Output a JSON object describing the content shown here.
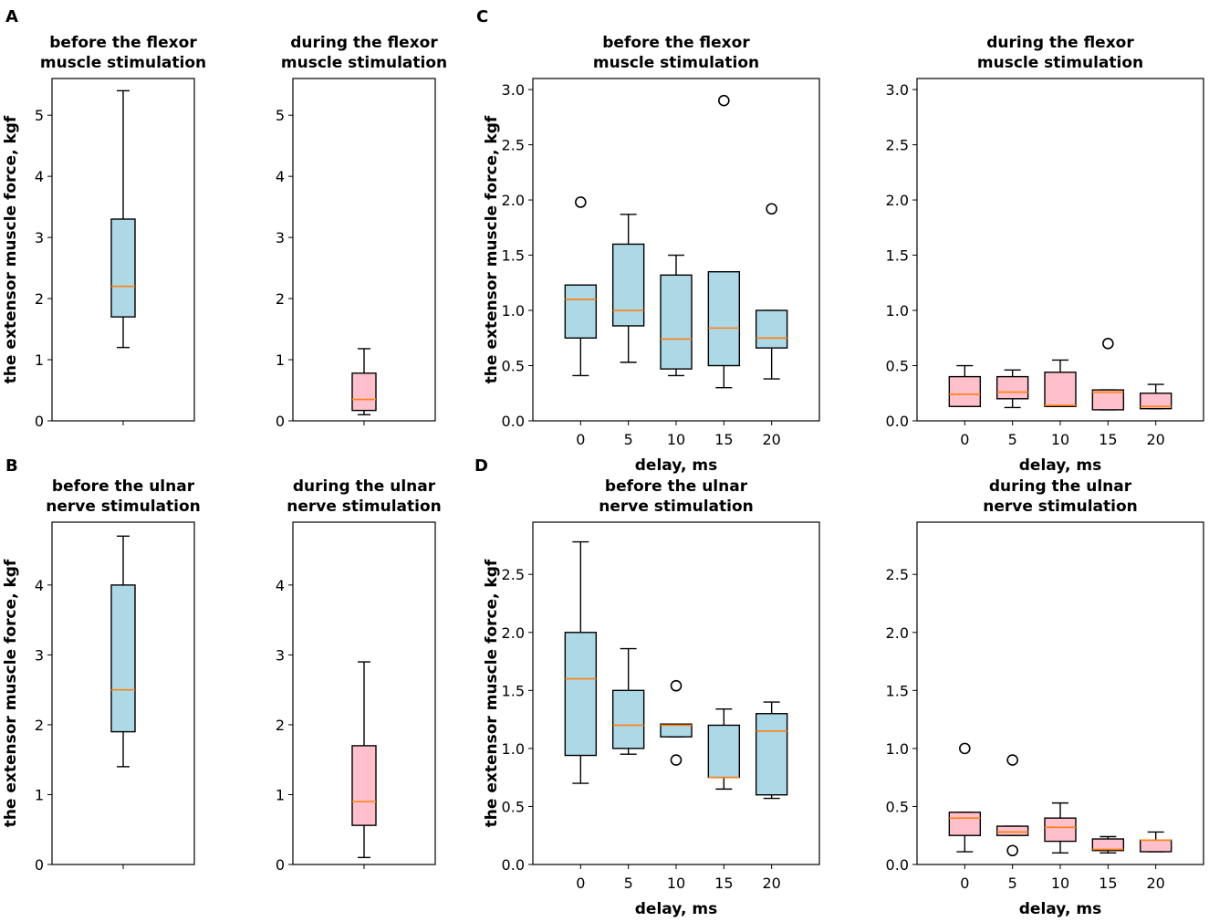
{
  "colors": {
    "before": "#add8e6",
    "during": "#ffc0cb",
    "median": "#ff7f0e",
    "line": "#000000"
  },
  "panel_labels": [
    "A",
    "B",
    "C",
    "D"
  ],
  "chart_data": [
    {
      "id": "A1",
      "type": "box",
      "title": [
        "before the flexor",
        "muscle stimulation"
      ],
      "ylabel": "the extensor muscle force, kgf",
      "xlabel": "",
      "ylim": [
        0,
        5.6
      ],
      "yticks": [
        0,
        1,
        2,
        3,
        4,
        5
      ],
      "categories": [],
      "fill": "before",
      "boxes": [
        {
          "whislo": 1.2,
          "q1": 1.7,
          "med": 2.2,
          "q3": 3.3,
          "whishi": 5.4,
          "fliers": []
        }
      ]
    },
    {
      "id": "A2",
      "type": "box",
      "title": [
        "during the flexor",
        "muscle stimulation"
      ],
      "ylabel": "",
      "xlabel": "",
      "ylim": [
        0,
        5.6
      ],
      "yticks": [
        0,
        1,
        2,
        3,
        4,
        5
      ],
      "categories": [],
      "fill": "during",
      "boxes": [
        {
          "whislo": 0.1,
          "q1": 0.17,
          "med": 0.35,
          "q3": 0.78,
          "whishi": 1.18,
          "fliers": []
        }
      ]
    },
    {
      "id": "C1",
      "type": "box",
      "title": [
        "before the flexor",
        "muscle stimulation"
      ],
      "ylabel": "the extensor muscle force, kgf",
      "xlabel": "delay, ms",
      "ylim": [
        0,
        3.1
      ],
      "yticks": [
        "0.0",
        "0.5",
        "1.0",
        "1.5",
        "2.0",
        "2.5",
        "3.0"
      ],
      "categories": [
        "0",
        "5",
        "10",
        "15",
        "20"
      ],
      "fill": "before",
      "boxes": [
        {
          "whislo": 0.41,
          "q1": 0.75,
          "med": 1.1,
          "q3": 1.23,
          "whishi": 1.23,
          "fliers": [
            1.98
          ]
        },
        {
          "whislo": 0.53,
          "q1": 0.86,
          "med": 1.0,
          "q3": 1.6,
          "whishi": 1.87,
          "fliers": []
        },
        {
          "whislo": 0.41,
          "q1": 0.47,
          "med": 0.74,
          "q3": 1.32,
          "whishi": 1.5,
          "fliers": []
        },
        {
          "whislo": 0.3,
          "q1": 0.5,
          "med": 0.84,
          "q3": 1.35,
          "whishi": 1.35,
          "fliers": [
            2.9
          ]
        },
        {
          "whislo": 0.38,
          "q1": 0.66,
          "med": 0.75,
          "q3": 1.0,
          "whishi": 1.0,
          "fliers": [
            1.92
          ]
        }
      ]
    },
    {
      "id": "C2",
      "type": "box",
      "title": [
        "during the flexor",
        "muscle stimulation"
      ],
      "ylabel": "",
      "xlabel": "delay, ms",
      "ylim": [
        0,
        3.1
      ],
      "yticks": [
        "0.0",
        "0.5",
        "1.0",
        "1.5",
        "2.0",
        "2.5",
        "3.0"
      ],
      "categories": [
        "0",
        "5",
        "10",
        "15",
        "20"
      ],
      "fill": "during",
      "boxes": [
        {
          "whislo": 0.13,
          "q1": 0.13,
          "med": 0.24,
          "q3": 0.4,
          "whishi": 0.5,
          "fliers": []
        },
        {
          "whislo": 0.12,
          "q1": 0.2,
          "med": 0.26,
          "q3": 0.4,
          "whishi": 0.46,
          "fliers": []
        },
        {
          "whislo": 0.13,
          "q1": 0.13,
          "med": 0.14,
          "q3": 0.44,
          "whishi": 0.55,
          "fliers": []
        },
        {
          "whislo": 0.1,
          "q1": 0.1,
          "med": 0.26,
          "q3": 0.28,
          "whishi": 0.28,
          "fliers": [
            0.7
          ]
        },
        {
          "whislo": 0.11,
          "q1": 0.11,
          "med": 0.13,
          "q3": 0.25,
          "whishi": 0.33,
          "fliers": []
        }
      ]
    },
    {
      "id": "B1",
      "type": "box",
      "title": [
        "before the ulnar",
        "nerve stimulation"
      ],
      "ylabel": "the extensor muscle force, kgf",
      "xlabel": "",
      "ylim": [
        0,
        4.9
      ],
      "yticks": [
        0,
        1,
        2,
        3,
        4
      ],
      "categories": [],
      "fill": "before",
      "boxes": [
        {
          "whislo": 1.4,
          "q1": 1.9,
          "med": 2.5,
          "q3": 4.0,
          "whishi": 4.7,
          "fliers": []
        }
      ]
    },
    {
      "id": "B2",
      "type": "box",
      "title": [
        "during the ulnar",
        "nerve stimulation"
      ],
      "ylabel": "",
      "xlabel": "",
      "ylim": [
        0,
        4.9
      ],
      "yticks": [
        0,
        1,
        2,
        3,
        4
      ],
      "categories": [],
      "fill": "during",
      "boxes": [
        {
          "whislo": 0.1,
          "q1": 0.56,
          "med": 0.9,
          "q3": 1.7,
          "whishi": 2.9,
          "fliers": []
        }
      ]
    },
    {
      "id": "D1",
      "type": "box",
      "title": [
        "before the ulnar",
        "nerve stimulation"
      ],
      "ylabel": "the extensor muscle force, kgf",
      "xlabel": "delay, ms",
      "ylim": [
        0,
        2.95
      ],
      "yticks": [
        "0.0",
        "0.5",
        "1.0",
        "1.5",
        "2.0",
        "2.5"
      ],
      "categories": [
        "0",
        "5",
        "10",
        "15",
        "20"
      ],
      "fill": "before",
      "boxes": [
        {
          "whislo": 0.7,
          "q1": 0.94,
          "med": 1.6,
          "q3": 2.0,
          "whishi": 2.78,
          "fliers": []
        },
        {
          "whislo": 0.95,
          "q1": 1.0,
          "med": 1.2,
          "q3": 1.5,
          "whishi": 1.86,
          "fliers": []
        },
        {
          "whislo": 1.1,
          "q1": 1.1,
          "med": 1.2,
          "q3": 1.21,
          "whishi": 1.21,
          "fliers": [
            1.54,
            0.9
          ]
        },
        {
          "whislo": 0.65,
          "q1": 0.75,
          "med": 0.75,
          "q3": 1.2,
          "whishi": 1.34,
          "fliers": []
        },
        {
          "whislo": 0.57,
          "q1": 0.6,
          "med": 1.15,
          "q3": 1.3,
          "whishi": 1.4,
          "fliers": []
        }
      ]
    },
    {
      "id": "D2",
      "type": "box",
      "title": [
        "during the ulnar",
        "nerve stimulation"
      ],
      "ylabel": "",
      "xlabel": "delay, ms",
      "ylim": [
        0,
        2.95
      ],
      "yticks": [
        "0.0",
        "0.5",
        "1.0",
        "1.5",
        "2.0",
        "2.5"
      ],
      "categories": [
        "0",
        "5",
        "10",
        "15",
        "20"
      ],
      "fill": "during",
      "boxes": [
        {
          "whislo": 0.11,
          "q1": 0.25,
          "med": 0.4,
          "q3": 0.45,
          "whishi": 0.45,
          "fliers": [
            1.0
          ]
        },
        {
          "whislo": 0.25,
          "q1": 0.25,
          "med": 0.28,
          "q3": 0.33,
          "whishi": 0.33,
          "fliers": [
            0.9,
            0.12
          ]
        },
        {
          "whislo": 0.1,
          "q1": 0.2,
          "med": 0.32,
          "q3": 0.4,
          "whishi": 0.53,
          "fliers": []
        },
        {
          "whislo": 0.1,
          "q1": 0.12,
          "med": 0.13,
          "q3": 0.22,
          "whishi": 0.24,
          "fliers": []
        },
        {
          "whislo": 0.11,
          "q1": 0.11,
          "med": 0.21,
          "q3": 0.21,
          "whishi": 0.28,
          "fliers": []
        }
      ]
    }
  ]
}
